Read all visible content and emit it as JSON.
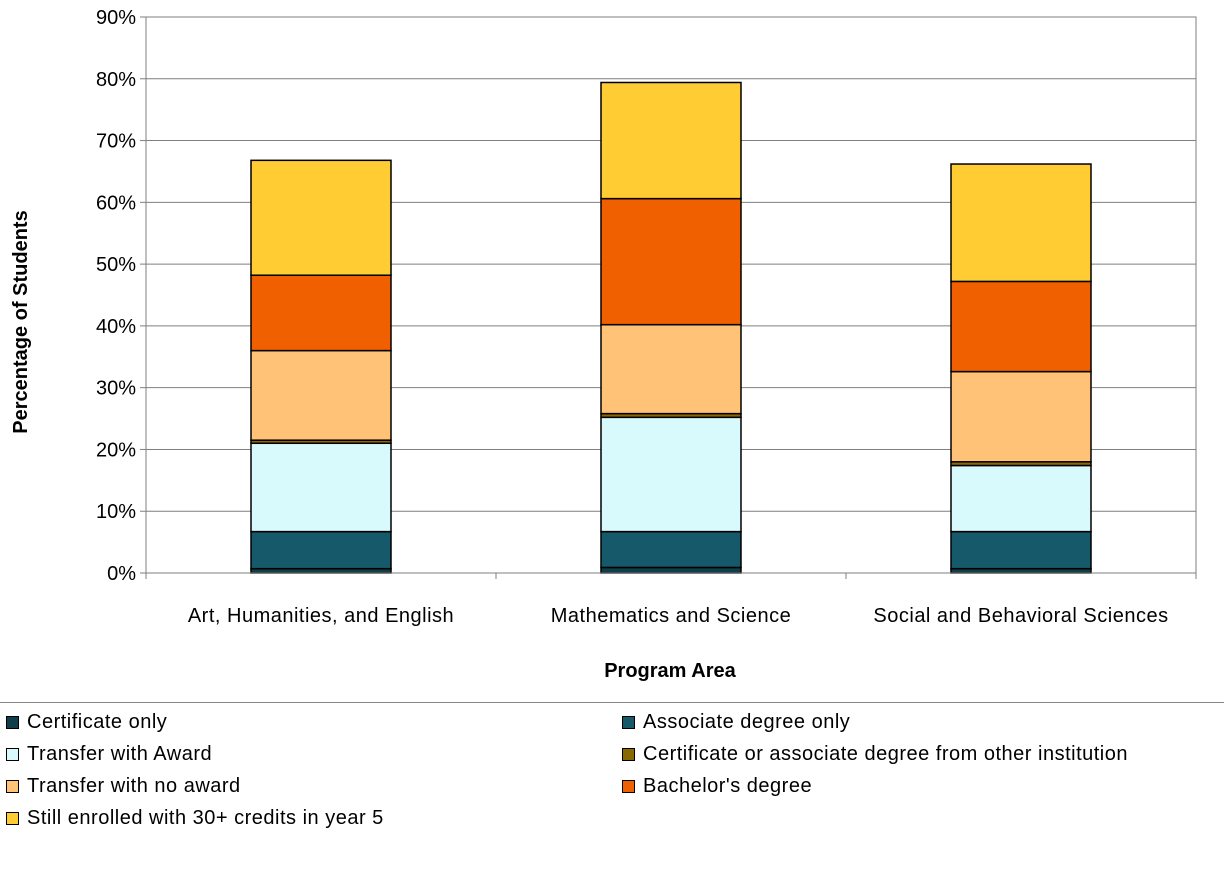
{
  "chart_data": {
    "type": "bar",
    "stacked": true,
    "title": "",
    "xlabel": "Program Area",
    "ylabel": "Percentage of Students",
    "ylim": [
      0,
      90
    ],
    "yticks": [
      "0%",
      "10%",
      "20%",
      "30%",
      "40%",
      "50%",
      "60%",
      "70%",
      "80%",
      "90%"
    ],
    "grid": true,
    "legend_position": "bottom",
    "categories": [
      "Art, Humanities, and English",
      "Mathematics and Science",
      "Social and Behavioral Sciences"
    ],
    "series": [
      {
        "name": "Certificate only",
        "color": "#0e3f4a",
        "values": [
          0.7,
          0.9,
          0.7
        ]
      },
      {
        "name": "Associate degree only",
        "color": "#16596a",
        "values": [
          6.0,
          5.8,
          6.0
        ]
      },
      {
        "name": "Transfer with Award",
        "color": "#d9fafd",
        "values": [
          14.3,
          18.5,
          10.7
        ]
      },
      {
        "name": "Certificate or associate degree from other institution",
        "color": "#8a6a00",
        "values": [
          0.5,
          0.6,
          0.6
        ]
      },
      {
        "name": "Transfer with no award",
        "color": "#ffc277",
        "values": [
          14.5,
          14.4,
          14.6
        ]
      },
      {
        "name": "Bachelor's degree",
        "color": "#f06000",
        "values": [
          12.2,
          20.4,
          14.6
        ]
      },
      {
        "name": "Still enrolled with 30+ credits in year 5",
        "color": "#ffcc33",
        "values": [
          18.6,
          18.8,
          19.0
        ]
      }
    ]
  }
}
